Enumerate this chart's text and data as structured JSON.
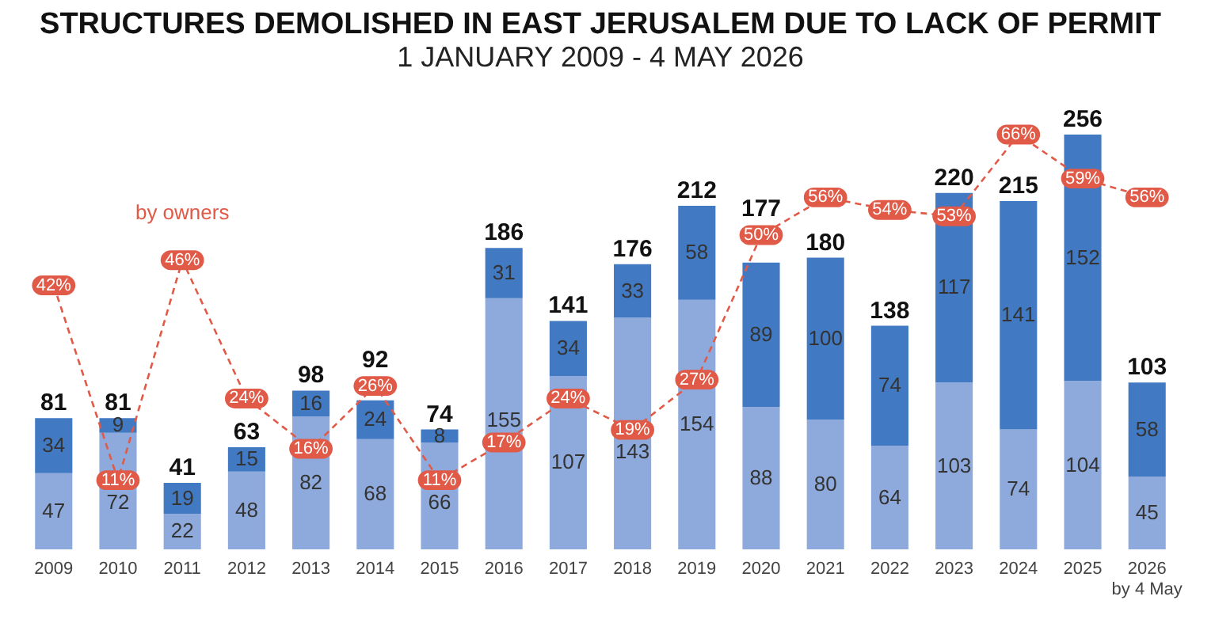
{
  "chart_data": {
    "type": "bar",
    "title": "STRUCTURES DEMOLISHED IN EAST JERUSALEM DUE TO LACK OF PERMIT",
    "subtitle": "1 JANUARY 2009 - 4 MAY 2026",
    "categories": [
      "2009",
      "2010",
      "2011",
      "2012",
      "2013",
      "2014",
      "2015",
      "2016",
      "2017",
      "2018",
      "2019",
      "2020",
      "2021",
      "2022",
      "2023",
      "2024",
      "2025",
      "2026\nby 4 May"
    ],
    "stacked": true,
    "data_labels": true,
    "grid": false,
    "series": [
      {
        "color": "#8eaadc",
        "values": [
          47,
          72,
          22,
          48,
          82,
          68,
          66,
          155,
          107,
          143,
          154,
          88,
          80,
          64,
          103,
          74,
          104,
          45
        ]
      },
      {
        "color": "#4179c2",
        "values": [
          34,
          9,
          19,
          15,
          16,
          24,
          8,
          31,
          34,
          33,
          58,
          89,
          100,
          74,
          117,
          141,
          152,
          58
        ]
      },
      {
        "name": "by owners",
        "type": "line",
        "axis": "y2",
        "color": "#e05a47",
        "line_style": "dashed",
        "marker": "circle",
        "values": [
          42,
          11,
          46,
          24,
          16,
          26,
          11,
          17,
          24,
          19,
          27,
          50,
          56,
          54,
          53,
          66,
          59,
          56
        ],
        "value_labels": [
          "42%",
          "11%",
          "46%",
          "24%",
          "16%",
          "26%",
          "11%",
          "17%",
          "24%",
          "19%",
          "27%",
          "50%",
          "56%",
          "54%",
          "53%",
          "66%",
          "59%",
          "56%"
        ]
      }
    ],
    "totals": [
      "81",
      "81",
      "41",
      "63",
      "98",
      "92",
      "74",
      "186",
      "141",
      "176",
      "212",
      "177",
      "180",
      "138",
      "220",
      "215",
      "256",
      "103"
    ]
  }
}
